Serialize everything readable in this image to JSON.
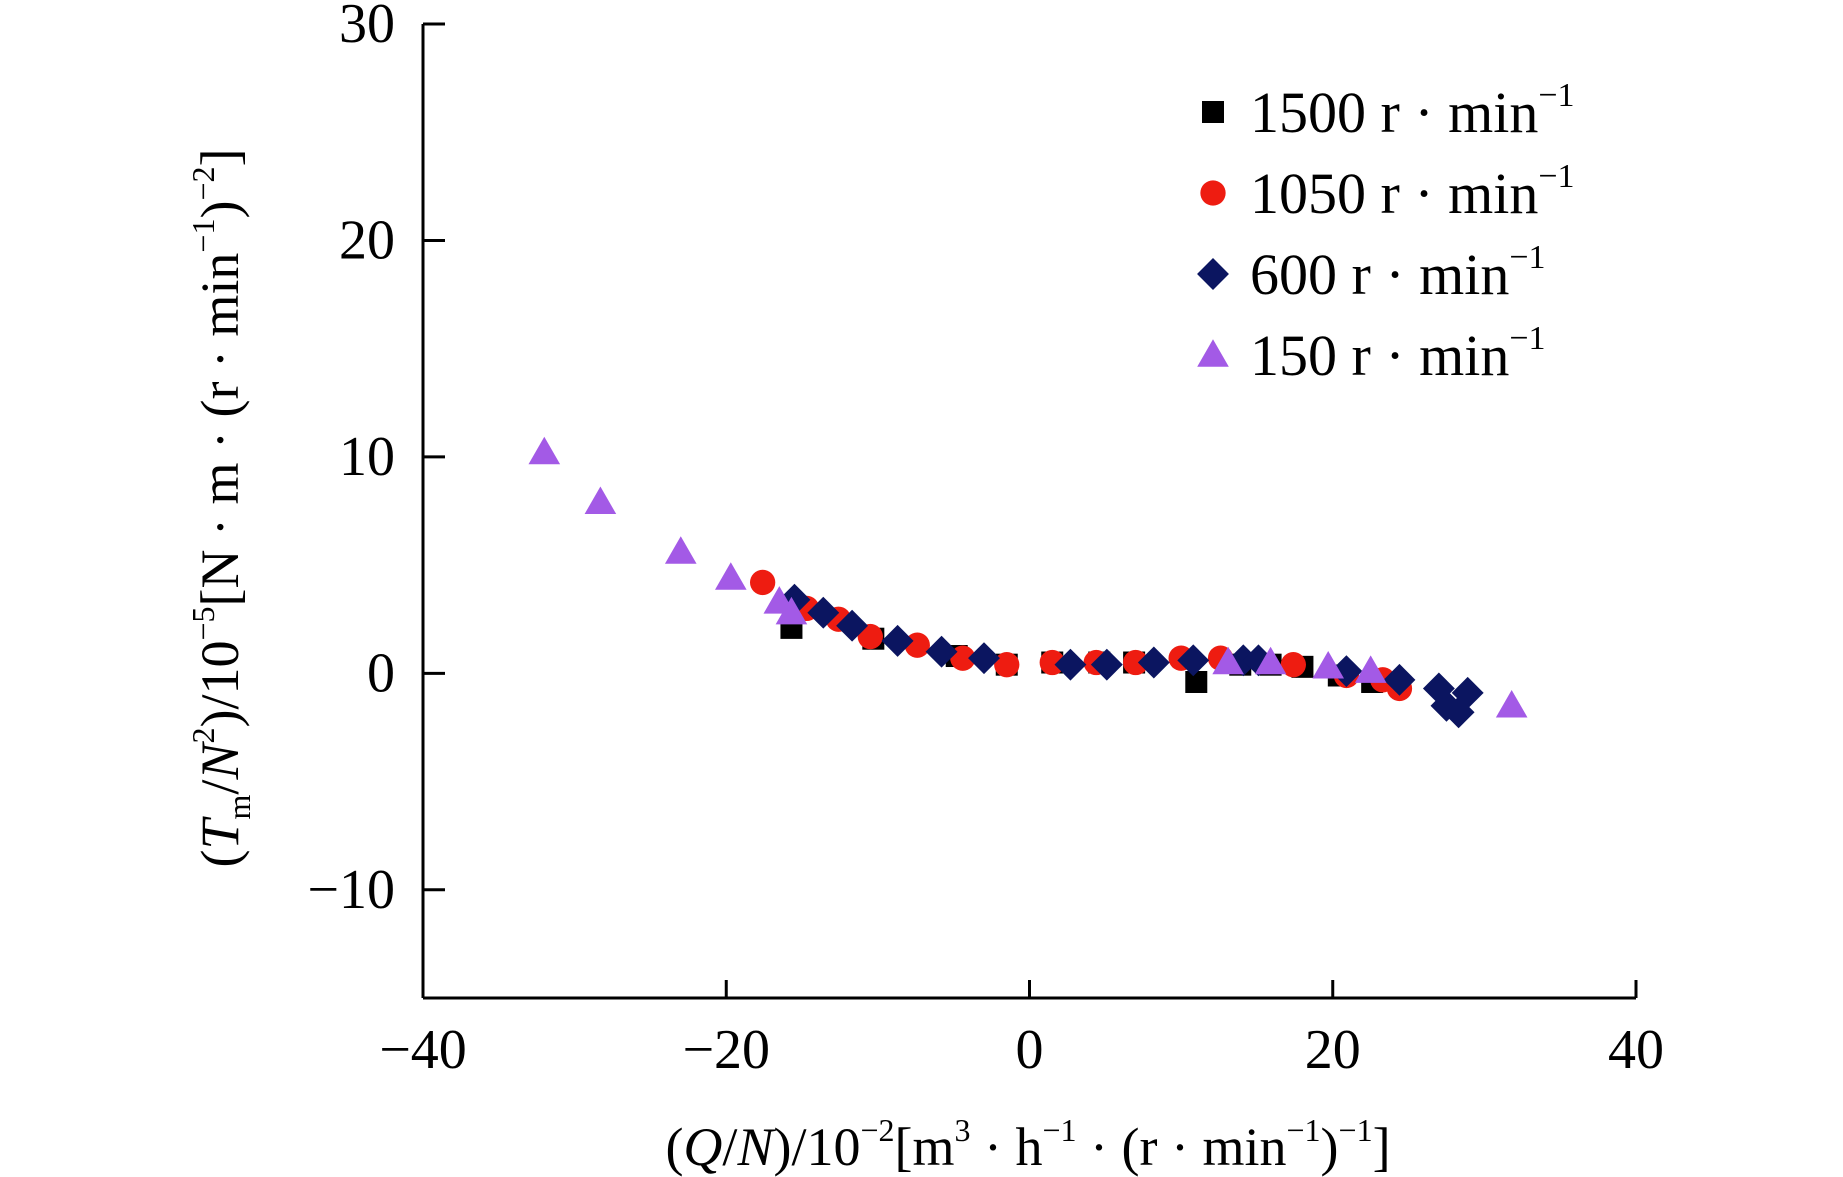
{
  "chart_data": {
    "type": "scatter",
    "title": "",
    "xlabel_parts": [
      {
        "t": "("
      },
      {
        "t": "Q",
        "i": true
      },
      {
        "t": "/"
      },
      {
        "t": "N",
        "i": true
      },
      {
        "t": ")/10"
      },
      {
        "t": "−2",
        "sup": true
      },
      {
        "t": "[m"
      },
      {
        "t": "3",
        "sup": true
      },
      {
        "t": " · h"
      },
      {
        "t": "−1",
        "sup": true
      },
      {
        "t": " · (r · min"
      },
      {
        "t": "−1",
        "sup": true
      },
      {
        "t": ")"
      },
      {
        "t": "−1",
        "sup": true
      },
      {
        "t": "]"
      }
    ],
    "ylabel_parts": [
      {
        "t": "("
      },
      {
        "t": "T",
        "i": true
      },
      {
        "t": "m",
        "sub": true
      },
      {
        "t": "/"
      },
      {
        "t": "N",
        "i": true
      },
      {
        "t": "2",
        "sup": true
      },
      {
        "t": ")/10"
      },
      {
        "t": "−5",
        "sup": true
      },
      {
        "t": "[N · m · (r · min"
      },
      {
        "t": "−1",
        "sup": true
      },
      {
        "t": ")"
      },
      {
        "t": "−2",
        "sup": true
      },
      {
        "t": "]"
      }
    ],
    "xlim": [
      -40,
      40
    ],
    "ylim": [
      -15,
      30
    ],
    "xticks": [
      -40,
      -20,
      0,
      20,
      40
    ],
    "xtick_labels": [
      "−40",
      "−20",
      "0",
      "20",
      "40"
    ],
    "yticks": [
      -10,
      0,
      10,
      20,
      30
    ],
    "ytick_labels": [
      "−10",
      "0",
      "10",
      "20",
      "30"
    ],
    "grid": false,
    "legend_position": "top-right",
    "series": [
      {
        "name": "1500 r · min",
        "name_sup": "−1",
        "marker": "square",
        "color": "#000000",
        "x": [
          -15.7,
          -10.3,
          -4.8,
          -1.5,
          1.5,
          4.6,
          6.9,
          11.0,
          13.9,
          15.9,
          18.0,
          20.4,
          22.6
        ],
        "y": [
          2.1,
          1.6,
          0.8,
          0.4,
          0.5,
          0.5,
          0.5,
          -0.4,
          0.4,
          0.4,
          0.3,
          -0.1,
          -0.4
        ]
      },
      {
        "name": "1050 r · min",
        "name_sup": "−1",
        "marker": "circle",
        "color": "#ee1c11",
        "x": [
          -17.6,
          -14.7,
          -12.6,
          -10.5,
          -7.4,
          -4.4,
          -1.5,
          1.5,
          4.4,
          7.0,
          10.0,
          12.6,
          17.4,
          20.9,
          23.3,
          24.4
        ],
        "y": [
          4.2,
          3.0,
          2.5,
          1.7,
          1.3,
          0.7,
          0.4,
          0.5,
          0.5,
          0.5,
          0.7,
          0.7,
          0.4,
          -0.1,
          -0.3,
          -0.7
        ]
      },
      {
        "name": "600 r · min",
        "name_sup": "−1",
        "marker": "diamond",
        "color": "#0b1560",
        "x": [
          -15.5,
          -13.6,
          -11.7,
          -8.7,
          -5.8,
          -3.0,
          2.7,
          5.1,
          8.2,
          10.8,
          14.1,
          15.1,
          20.9,
          24.4,
          27.0,
          27.5,
          28.3,
          28.9
        ],
        "y": [
          3.4,
          2.8,
          2.2,
          1.5,
          1.0,
          0.7,
          0.4,
          0.4,
          0.5,
          0.6,
          0.6,
          0.6,
          0.1,
          -0.3,
          -0.7,
          -1.5,
          -1.8,
          -0.9
        ]
      },
      {
        "name": "150 r · min",
        "name_sup": "−1",
        "marker": "triangle",
        "color": "#a35ae6",
        "x": [
          -32.0,
          -28.3,
          -23.0,
          -19.7,
          -16.5,
          -15.7,
          13.1,
          15.9,
          19.7,
          22.5,
          31.8
        ],
        "y": [
          10.2,
          7.9,
          5.6,
          4.4,
          3.3,
          2.8,
          0.5,
          0.5,
          0.3,
          0.1,
          -1.5
        ]
      }
    ]
  }
}
